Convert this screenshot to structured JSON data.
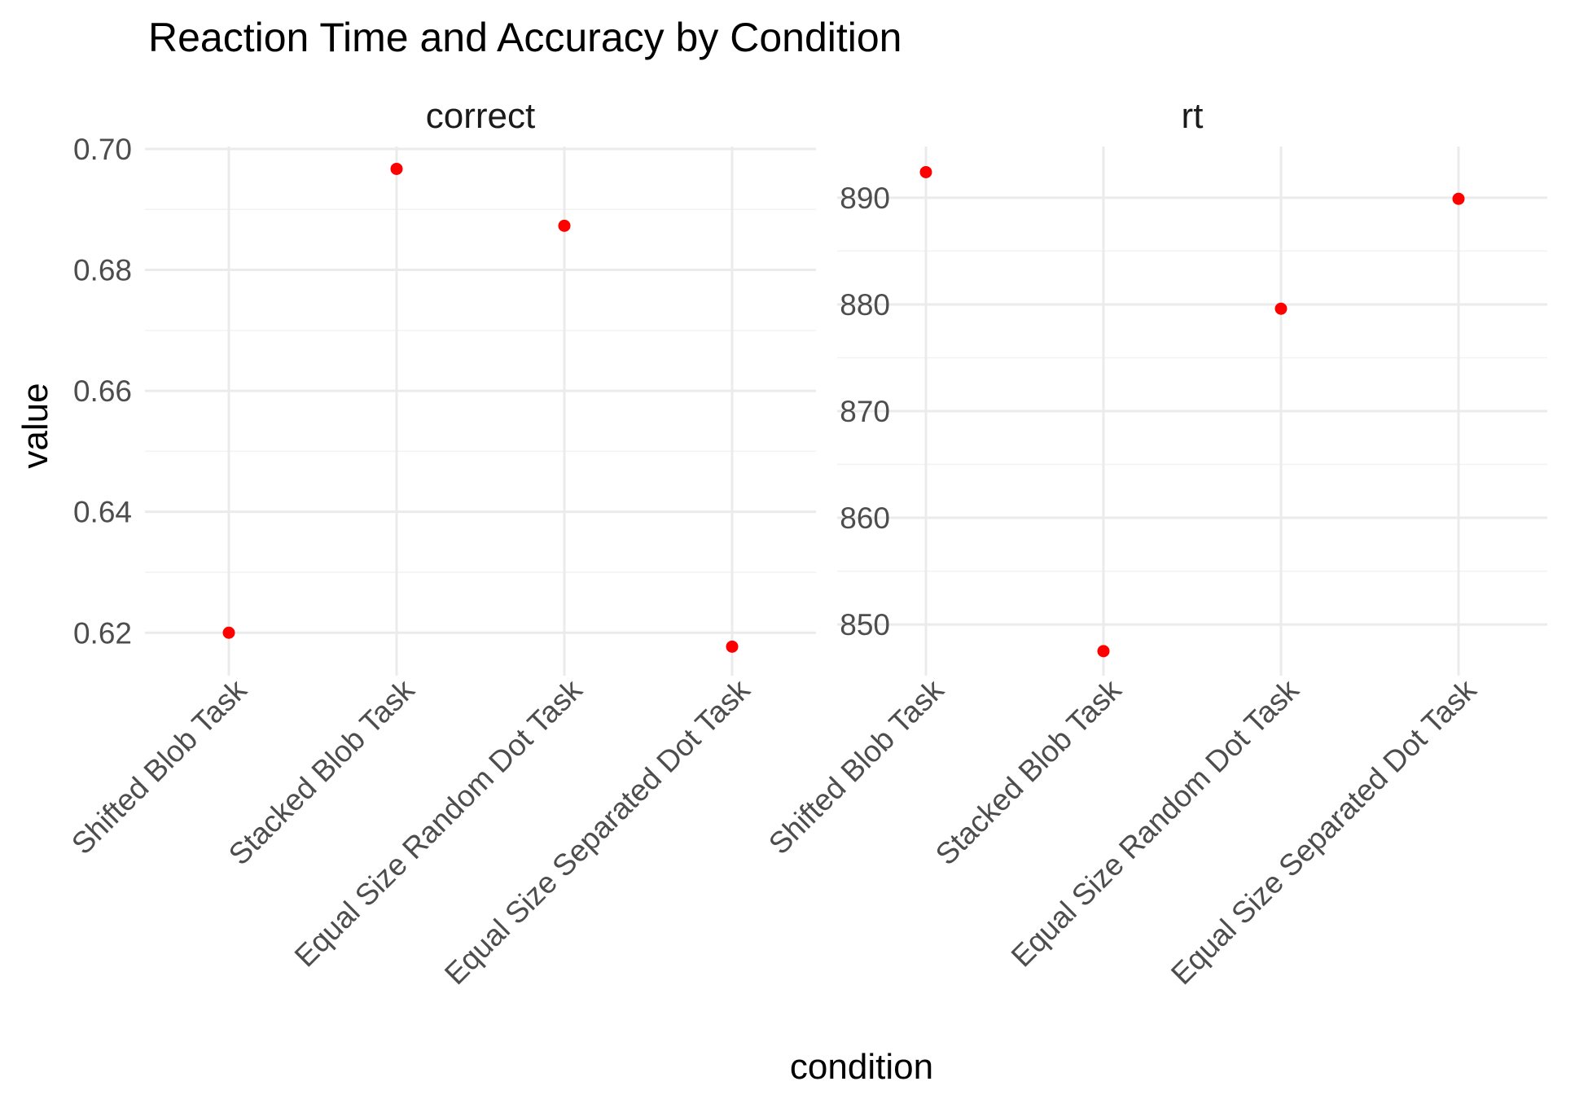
{
  "chart_data": {
    "type": "scatter",
    "title": "Reaction Time and Accuracy by Condition",
    "xlabel": "condition",
    "ylabel": "value",
    "categories": [
      "Shifted Blob Task",
      "Stacked Blob Task",
      "Equal Size Random Dot Task",
      "Equal Size Separated Dot Task"
    ],
    "point_color": "#ff0000",
    "grid": true,
    "facets": [
      {
        "label": "correct",
        "values": [
          0.62,
          0.6967,
          0.6873,
          0.6177
        ],
        "ylim": [
          0.6129,
          0.7004
        ],
        "yticks": [
          0.62,
          0.64,
          0.66,
          0.68,
          0.7
        ],
        "ytick_labels": [
          "0.62",
          "0.64",
          "0.66",
          "0.68",
          "0.70"
        ]
      },
      {
        "label": "rt",
        "values": [
          892.4,
          847.5,
          879.6,
          889.9
        ],
        "ylim": [
          845.2,
          894.8
        ],
        "yticks": [
          850,
          860,
          870,
          880,
          890
        ],
        "ytick_labels": [
          "850",
          "860",
          "870",
          "880",
          "890"
        ]
      }
    ]
  }
}
